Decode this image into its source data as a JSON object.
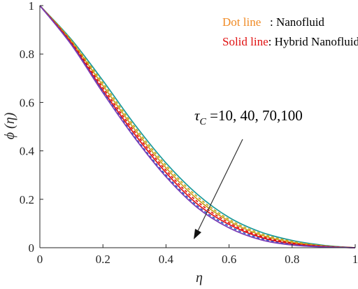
{
  "chart_data": {
    "type": "line",
    "xlabel": "η",
    "ylabel": "ϕ (η)",
    "xlim": [
      0,
      1
    ],
    "ylim": [
      0,
      1
    ],
    "xticks": [
      "0",
      "0.2",
      "0.4",
      "0.6",
      "0.8",
      "1"
    ],
    "yticks": [
      "0",
      "0.2",
      "0.4",
      "0.6",
      "0.8",
      "1"
    ],
    "legend": {
      "position": "top-right",
      "entries": [
        {
          "key": "Dot line",
          "sep": "   : ",
          "desc": "Nanofluid",
          "key_color": "#f08a24"
        },
        {
          "key": "Solid line",
          "sep": ": ",
          "desc": "Hybrid Nanofluid",
          "key_color": "#e01010"
        }
      ]
    },
    "annotation": {
      "symbol": "τ",
      "subscript": "C",
      "text": " =10, 40, 70,100"
    },
    "x": [
      0,
      0.1,
      0.2,
      0.3,
      0.4,
      0.5,
      0.6,
      0.7,
      0.8,
      0.9,
      1.0
    ],
    "series": [
      {
        "style": "solid",
        "color": "#1a9a9a",
        "values": [
          1,
          0.86,
          0.69,
          0.51,
          0.35,
          0.22,
          0.125,
          0.065,
          0.03,
          0.01,
          0
        ]
      },
      {
        "style": "dotted",
        "color": "#c9a21b",
        "values": [
          1,
          0.856,
          0.68,
          0.5,
          0.34,
          0.21,
          0.117,
          0.059,
          0.026,
          0.008,
          0
        ]
      },
      {
        "style": "solid",
        "color": "#c9a21b",
        "values": [
          1,
          0.852,
          0.67,
          0.49,
          0.33,
          0.2,
          0.11,
          0.053,
          0.022,
          0.007,
          0
        ]
      },
      {
        "style": "dotted",
        "color": "#e01010",
        "values": [
          1,
          0.848,
          0.66,
          0.48,
          0.32,
          0.19,
          0.103,
          0.048,
          0.019,
          0.006,
          0
        ]
      },
      {
        "style": "solid",
        "color": "#e01010",
        "values": [
          1,
          0.844,
          0.65,
          0.47,
          0.31,
          0.18,
          0.096,
          0.043,
          0.016,
          0.005,
          0
        ]
      },
      {
        "style": "dotted",
        "color": "#2a58c8",
        "values": [
          1,
          0.84,
          0.645,
          0.46,
          0.3,
          0.172,
          0.089,
          0.038,
          0.013,
          0.004,
          0
        ]
      },
      {
        "style": "solid",
        "color": "#7a3bb5",
        "values": [
          1,
          0.838,
          0.64,
          0.455,
          0.293,
          0.165,
          0.082,
          0.033,
          0.011,
          0.003,
          0
        ]
      }
    ]
  }
}
